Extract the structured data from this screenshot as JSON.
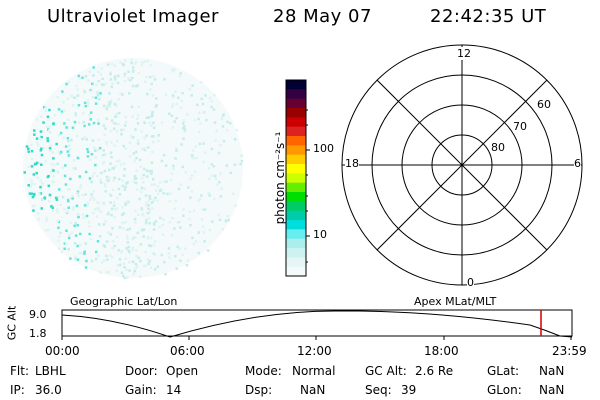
{
  "header": {
    "instrument": "Ultraviolet Imager",
    "date": "28 May 07",
    "time": "22:42:35 UT"
  },
  "colorbar": {
    "unit_label": "photon cm⁻²s⁻¹",
    "ticks": [
      "100",
      "10"
    ],
    "colors": [
      "#000033",
      "#330044",
      "#660033",
      "#990000",
      "#cc0000",
      "#dd2222",
      "#ff6600",
      "#ff9900",
      "#ffcc00",
      "#ffff00",
      "#ccff00",
      "#66ee00",
      "#00dd00",
      "#00cc66",
      "#00ccaa",
      "#00dddd",
      "#66eeee",
      "#aaeeee",
      "#ccf2f2",
      "#e6f5f5",
      "#f2fafa"
    ]
  },
  "polar_plot": {
    "mlt_labels": {
      "top": "12",
      "left": "18",
      "right": "6",
      "bottom": "0"
    },
    "lat_labels": [
      "60",
      "70",
      "80"
    ]
  },
  "timeline": {
    "left_label": "Geographic Lat/Lon",
    "right_label": "Apex MLat/MLT",
    "y_axis_label": "GC Alt",
    "y_ticks": [
      "9.0",
      "1.8"
    ],
    "x_ticks": [
      "00:00",
      "06:00",
      "12:00",
      "18:00",
      "23:59"
    ],
    "current_time_marker_color": "#cc0000"
  },
  "status": {
    "row1": [
      {
        "label": "Flt:",
        "value": "LBHL"
      },
      {
        "label": "Door:",
        "value": "Open"
      },
      {
        "label": "Mode:",
        "value": "Normal"
      },
      {
        "label": "GC Alt:",
        "value": "2.6 Re"
      },
      {
        "label": "GLat:",
        "value": "NaN"
      }
    ],
    "row2": [
      {
        "label": "IP:",
        "value": "36.0"
      },
      {
        "label": "Gain:",
        "value": "14"
      },
      {
        "label": "Dsp:",
        "value": "NaN"
      },
      {
        "label": "Seq:",
        "value": "39"
      },
      {
        "label": "GLon:",
        "value": "NaN"
      }
    ]
  }
}
